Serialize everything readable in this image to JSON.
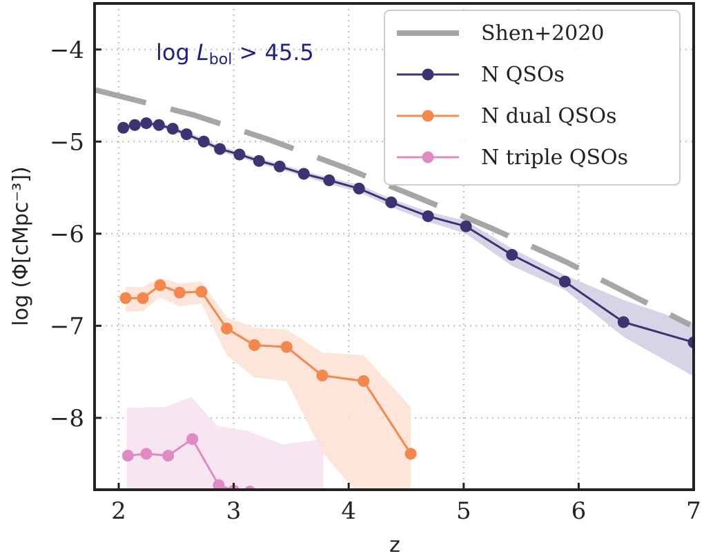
{
  "chart_data": {
    "type": "line",
    "title": "",
    "xlabel": "z",
    "ylabel": "log (Φ[cMpc⁻³])",
    "xlim": [
      1.79,
      7.0
    ],
    "ylim": [
      -8.78,
      -3.5
    ],
    "xticks": [
      2,
      3,
      4,
      5,
      6,
      7
    ],
    "yticks": [
      -4,
      -5,
      -6,
      -7,
      -8
    ],
    "xtick_labels": [
      "2",
      "3",
      "4",
      "5",
      "6",
      "7"
    ],
    "ytick_labels": [
      "−4",
      "−5",
      "−6",
      "−7",
      "−8"
    ],
    "grid": true,
    "legend_position": "top-right",
    "annotation": {
      "prefix": "log ",
      "var": "L",
      "sub": "bol",
      "suffix": " > 45.5",
      "color": "#1f1f8a"
    },
    "series": [
      {
        "name": "Shen+2020",
        "style": "dashed",
        "color": "#a6a6a6",
        "x": [
          1.8,
          2.65,
          3.31,
          3.96,
          4.61,
          5.24,
          5.88,
          6.51,
          6.97
        ],
        "y": [
          -4.44,
          -4.71,
          -4.98,
          -5.28,
          -5.61,
          -5.94,
          -6.3,
          -6.7,
          -6.99
        ]
      },
      {
        "name": "N QSOs",
        "style": "line-marker",
        "color": "#3b3372",
        "band_color": "#cfcde2",
        "x": [
          2.04,
          2.14,
          2.24,
          2.35,
          2.47,
          2.59,
          2.74,
          2.88,
          3.05,
          3.22,
          3.4,
          3.61,
          3.83,
          4.09,
          4.37,
          4.69,
          5.02,
          5.42,
          5.88,
          6.39,
          7.0
        ],
        "y": [
          -4.85,
          -4.82,
          -4.8,
          -4.82,
          -4.86,
          -4.92,
          -5.0,
          -5.08,
          -5.14,
          -5.21,
          -5.27,
          -5.35,
          -5.42,
          -5.51,
          -5.66,
          -5.81,
          -5.92,
          -6.23,
          -6.52,
          -6.96,
          -7.18
        ],
        "lower": [
          -4.88,
          -4.85,
          -4.83,
          -4.85,
          -4.89,
          -4.95,
          -5.03,
          -5.11,
          -5.17,
          -5.24,
          -5.3,
          -5.38,
          -5.46,
          -5.55,
          -5.71,
          -5.87,
          -6.0,
          -6.35,
          -6.61,
          -7.12,
          -7.55
        ],
        "upper": [
          -4.82,
          -4.79,
          -4.77,
          -4.79,
          -4.83,
          -4.89,
          -4.97,
          -5.05,
          -5.11,
          -5.18,
          -5.24,
          -5.32,
          -5.39,
          -5.47,
          -5.62,
          -5.76,
          -5.86,
          -6.16,
          -6.45,
          -6.72,
          -6.98
        ]
      },
      {
        "name": "N dual QSOs",
        "style": "line-marker",
        "color": "#f4874b",
        "band_color": "#fde0d2",
        "x": [
          2.06,
          2.21,
          2.36,
          2.53,
          2.72,
          2.94,
          3.18,
          3.46,
          3.77,
          4.13,
          4.54
        ],
        "y": [
          -6.7,
          -6.7,
          -6.56,
          -6.64,
          -6.63,
          -7.03,
          -7.21,
          -7.23,
          -7.54,
          -7.6,
          -8.39
        ],
        "lower": [
          -6.85,
          -6.84,
          -6.69,
          -6.79,
          -6.76,
          -7.32,
          -7.56,
          -7.6,
          -8.37,
          -8.9,
          -8.9
        ],
        "upper": [
          -6.58,
          -6.58,
          -6.48,
          -6.54,
          -6.52,
          -6.91,
          -7.02,
          -7.04,
          -7.29,
          -7.32,
          -7.88
        ]
      },
      {
        "name": "N triple QSOs",
        "style": "line-marker",
        "color": "#e08ac4",
        "band_color": "#f7e1f0",
        "x": [
          2.08,
          2.24,
          2.43,
          2.64,
          2.87,
          3.0,
          3.14
        ],
        "y": [
          -8.41,
          -8.39,
          -8.41,
          -8.23,
          -8.73,
          -8.79,
          -8.8
        ],
        "band_x": [
          2.07,
          2.41,
          2.63,
          2.86,
          3.12,
          3.43,
          3.78
        ],
        "lower": [
          -9.0,
          -9.0,
          -9.0,
          -9.0,
          -9.0,
          -9.0,
          -9.0
        ],
        "upper": [
          -7.89,
          -7.88,
          -7.77,
          -8.09,
          -8.14,
          -8.29,
          -8.23
        ]
      }
    ]
  }
}
